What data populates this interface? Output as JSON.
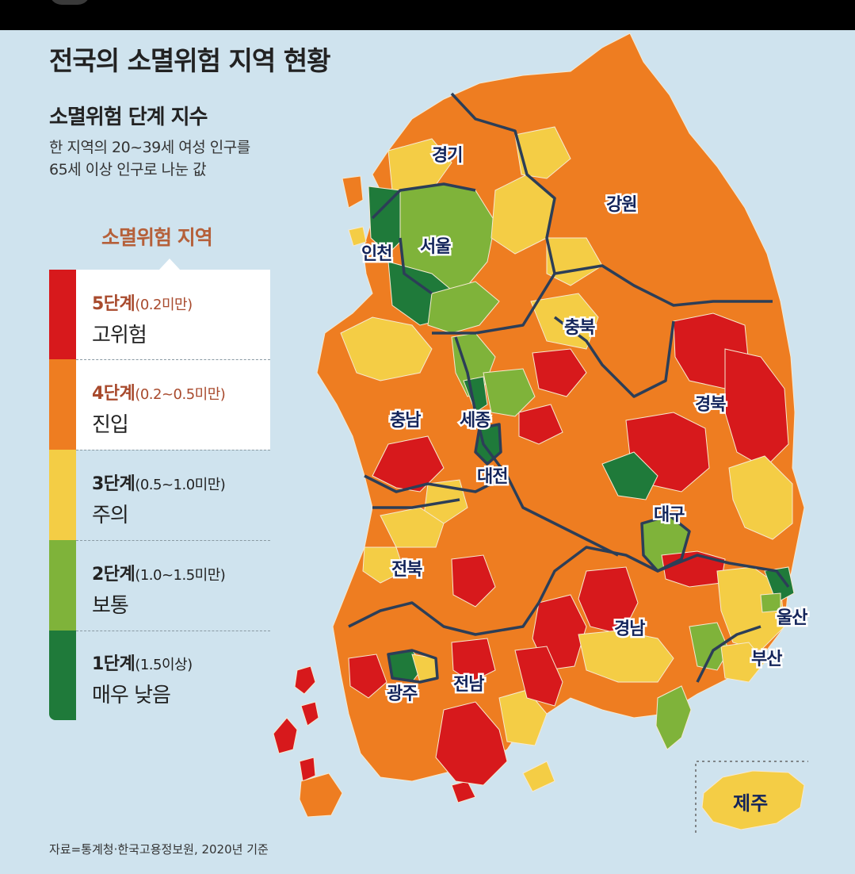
{
  "title": "전국의 소멸위험 지역 현황",
  "subtitle": "소멸위험 단계 지수",
  "description": {
    "line1": "한 지역의 20~39세 여성 인구를",
    "line2": "65세 이상 인구로 나눈 값"
  },
  "legend": {
    "title": "소멸위험 지역",
    "title_color": "#b5603a",
    "items": [
      {
        "stage": "5단계",
        "range": "(0.2미만)",
        "label": "고위험",
        "color": "#d7191c",
        "stage_color": "#a84a2d",
        "highlighted": true
      },
      {
        "stage": "4단계",
        "range": "(0.2~0.5미만)",
        "label": "진입",
        "color": "#ee7d21",
        "stage_color": "#a84a2d",
        "highlighted": true
      },
      {
        "stage": "3단계",
        "range": "(0.5~1.0미만)",
        "label": "주의",
        "color": "#f4cd45",
        "stage_color": "#222222",
        "highlighted": false
      },
      {
        "stage": "2단계",
        "range": "(1.0~1.5미만)",
        "label": "보통",
        "color": "#7fb33a",
        "stage_color": "#222222",
        "highlighted": false
      },
      {
        "stage": "1단계",
        "range": "(1.5이상)",
        "label": "매우 낮음",
        "color": "#1f7a3a",
        "stage_color": "#222222",
        "highlighted": false
      }
    ]
  },
  "regions": {
    "gyeonggi": "경기",
    "gangwon": "강원",
    "incheon": "인천",
    "seoul": "서울",
    "chungbuk": "충북",
    "chungnam": "충남",
    "sejong": "세종",
    "daejeon": "대전",
    "gyeongbuk": "경북",
    "daegu": "대구",
    "jeonbuk": "전북",
    "gwangju": "광주",
    "jeonnam": "전남",
    "gyeongnam": "경남",
    "ulsan": "울산",
    "busan": "부산",
    "jeju": "제주"
  },
  "source": "자료=통계청·한국고용정보원, 2020년 기준",
  "colors": {
    "sea": "#cfe3ee",
    "stage5": "#d7191c",
    "stage4": "#ee7d21",
    "stage3": "#f4cd45",
    "stage2": "#7fb33a",
    "stage1": "#1f7a3a",
    "border": "#2c3e57"
  }
}
